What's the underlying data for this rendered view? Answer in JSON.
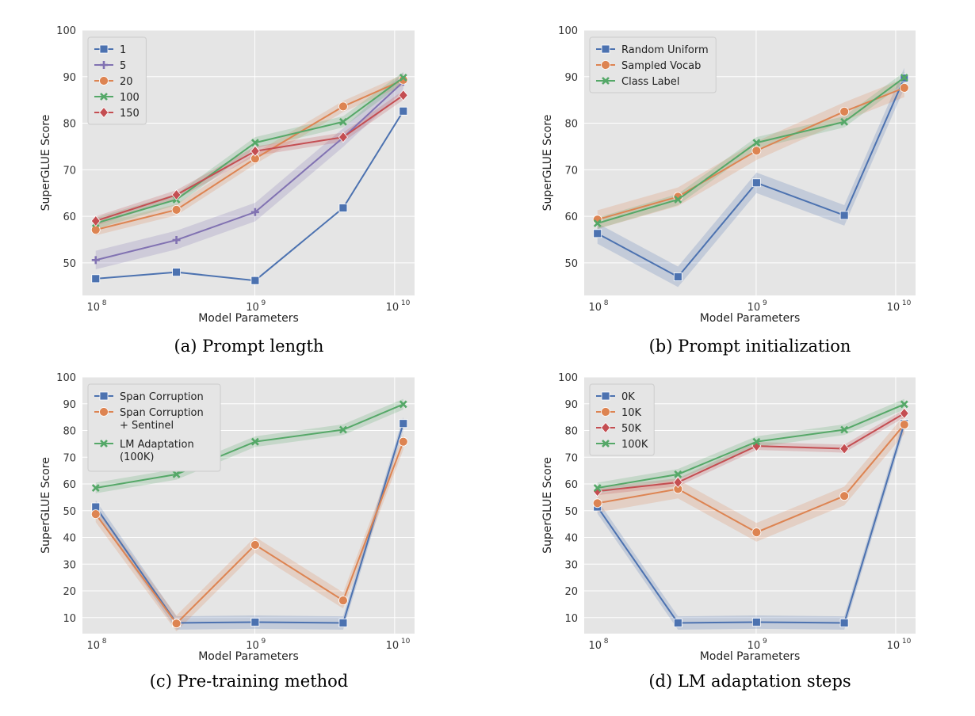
{
  "colors": {
    "plot_background": "#E5E5E5",
    "grid": "#FFFFFF",
    "blue": "#4C72B0",
    "purple": "#8172B2",
    "orange": "#DD8452",
    "green": "#55A868",
    "red": "#C44E52"
  },
  "chart_data": [
    {
      "type": "line",
      "caption": "(a) Prompt length",
      "xlabel": "Model Parameters",
      "ylabel": "SuperGLUE Score",
      "xscale": "log",
      "x": [
        77000000,
        250000000,
        800000000,
        3000000000,
        11000000000
      ],
      "xtick_labels": [
        {
          "base": "10",
          "exp": "8"
        },
        {
          "base": "10",
          "exp": "9"
        },
        {
          "base": "10",
          "exp": "10"
        }
      ],
      "ylim": [
        43,
        100
      ],
      "yticks": [
        50,
        60,
        70,
        80,
        90,
        100
      ],
      "grid": true,
      "legend_position": "top-left",
      "series": [
        {
          "name": "1",
          "color": "#4C72B0",
          "marker": "square",
          "values": [
            46.6,
            48.0,
            46.2,
            61.8,
            82.6
          ],
          "band": 0
        },
        {
          "name": "5",
          "color": "#8172B2",
          "marker": "plus",
          "values": [
            50.6,
            54.9,
            60.9,
            76.9,
            88.9
          ],
          "band": 2.0
        },
        {
          "name": "20",
          "color": "#DD8452",
          "marker": "circle",
          "values": [
            57.1,
            61.4,
            72.4,
            83.6,
            89.3
          ],
          "band": 1.2
        },
        {
          "name": "100",
          "color": "#55A868",
          "marker": "x",
          "values": [
            58.5,
            63.6,
            75.8,
            80.3,
            89.8
          ],
          "band": 1.2
        },
        {
          "name": "150",
          "color": "#C44E52",
          "marker": "diamond",
          "values": [
            59.0,
            64.6,
            74.0,
            77.0,
            86.0
          ],
          "band": 1.0
        }
      ]
    },
    {
      "type": "line",
      "caption": "(b) Prompt initialization",
      "xlabel": "Model Parameters",
      "ylabel": "SuperGLUE Score",
      "xscale": "log",
      "x": [
        77000000,
        250000000,
        800000000,
        3000000000,
        11000000000
      ],
      "xtick_labels": [
        {
          "base": "10",
          "exp": "8"
        },
        {
          "base": "10",
          "exp": "9"
        },
        {
          "base": "10",
          "exp": "10"
        }
      ],
      "ylim": [
        43,
        100
      ],
      "yticks": [
        50,
        60,
        70,
        80,
        90,
        100
      ],
      "grid": true,
      "legend_position": "top-left",
      "series": [
        {
          "name": "Random Uniform",
          "color": "#4C72B0",
          "marker": "square",
          "values": [
            56.3,
            47.0,
            67.2,
            60.2,
            89.7
          ],
          "band": 2.2
        },
        {
          "name": "Sampled Vocab",
          "color": "#DD8452",
          "marker": "circle",
          "values": [
            59.3,
            64.2,
            74.1,
            82.5,
            87.6
          ],
          "band": 2.0
        },
        {
          "name": "Class Label",
          "color": "#55A868",
          "marker": "x",
          "values": [
            58.5,
            63.6,
            75.8,
            80.3,
            89.8
          ],
          "band": 1.2
        }
      ]
    },
    {
      "type": "line",
      "caption": "(c) Pre-training method",
      "xlabel": "Model Parameters",
      "ylabel": "SuperGLUE Score",
      "xscale": "log",
      "x": [
        77000000,
        250000000,
        800000000,
        3000000000,
        11000000000
      ],
      "xtick_labels": [
        {
          "base": "10",
          "exp": "8"
        },
        {
          "base": "10",
          "exp": "9"
        },
        {
          "base": "10",
          "exp": "10"
        }
      ],
      "ylim": [
        4,
        100
      ],
      "yticks": [
        10,
        20,
        30,
        40,
        50,
        60,
        70,
        80,
        90,
        100
      ],
      "grid": true,
      "legend_position": "top-left",
      "series": [
        {
          "name_lines": [
            "Span Corruption"
          ],
          "color": "#4C72B0",
          "marker": "square",
          "values": [
            51.4,
            8.0,
            8.3,
            8.0,
            82.6
          ],
          "band": 2.5
        },
        {
          "name_lines": [
            "Span Corruption",
            "+ Sentinel"
          ],
          "color": "#DD8452",
          "marker": "circle",
          "values": [
            48.7,
            7.8,
            37.2,
            16.4,
            75.8
          ],
          "band": 3.0
        },
        {
          "name_lines": [
            "LM Adaptation",
            "(100K)"
          ],
          "color": "#55A868",
          "marker": "x",
          "values": [
            58.5,
            63.6,
            75.8,
            80.3,
            89.8
          ],
          "band": 2.0
        }
      ]
    },
    {
      "type": "line",
      "caption": "(d) LM adaptation steps",
      "xlabel": "Model Parameters",
      "ylabel": "SuperGLUE Score",
      "xscale": "log",
      "x": [
        77000000,
        250000000,
        800000000,
        3000000000,
        11000000000
      ],
      "xtick_labels": [
        {
          "base": "10",
          "exp": "8"
        },
        {
          "base": "10",
          "exp": "9"
        },
        {
          "base": "10",
          "exp": "10"
        }
      ],
      "ylim": [
        4,
        100
      ],
      "yticks": [
        10,
        20,
        30,
        40,
        50,
        60,
        70,
        80,
        90,
        100
      ],
      "grid": true,
      "legend_position": "top-left",
      "series": [
        {
          "name": "0K",
          "color": "#4C72B0",
          "marker": "square",
          "values": [
            51.4,
            8.0,
            8.3,
            8.0,
            82.6
          ],
          "band": 2.5
        },
        {
          "name": "10K",
          "color": "#DD8452",
          "marker": "circle",
          "values": [
            52.8,
            58.1,
            41.9,
            55.5,
            82.2
          ],
          "band": 3.5
        },
        {
          "name": "50K",
          "color": "#C44E52",
          "marker": "diamond",
          "values": [
            57.3,
            60.6,
            74.2,
            73.2,
            86.4
          ],
          "band": 1.5
        },
        {
          "name": "100K",
          "color": "#55A868",
          "marker": "x",
          "values": [
            58.5,
            63.6,
            75.8,
            80.3,
            89.8
          ],
          "band": 2.0
        }
      ]
    }
  ]
}
